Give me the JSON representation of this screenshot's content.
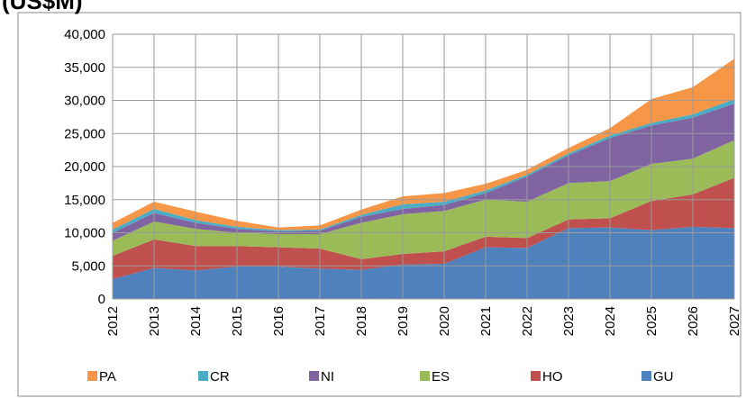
{
  "chart_data": {
    "type": "stacked_area",
    "title": "(US$M)",
    "categories": [
      "2012",
      "2013",
      "2014",
      "2015",
      "2016",
      "2017",
      "2018",
      "2019",
      "2020",
      "2021",
      "2022",
      "2023",
      "2024",
      "2025",
      "2026",
      "2027"
    ],
    "series": [
      {
        "name": "GU",
        "color": "#4f81bd",
        "values": [
          3000,
          4700,
          4300,
          4900,
          4900,
          4600,
          4400,
          5200,
          5300,
          7800,
          7700,
          10700,
          10800,
          10400,
          10900,
          10700
        ]
      },
      {
        "name": "HO",
        "color": "#c0504d",
        "values": [
          3500,
          4300,
          3700,
          3100,
          2900,
          3000,
          1600,
          1600,
          1900,
          1600,
          1500,
          1300,
          1400,
          4400,
          4900,
          7600
        ]
      },
      {
        "name": "ES",
        "color": "#9bbb59",
        "values": [
          2300,
          2700,
          2600,
          2000,
          2000,
          2200,
          5500,
          6000,
          6100,
          5600,
          5500,
          5500,
          5600,
          5600,
          5400,
          5700
        ]
      },
      {
        "name": "NI",
        "color": "#8064a2",
        "values": [
          1200,
          1300,
          900,
          600,
          400,
          500,
          900,
          800,
          900,
          1000,
          3800,
          4200,
          6500,
          5800,
          6200,
          5500
        ]
      },
      {
        "name": "CR",
        "color": "#4bacc6",
        "values": [
          500,
          600,
          400,
          300,
          200,
          200,
          300,
          700,
          500,
          400,
          300,
          300,
          400,
          400,
          500,
          700
        ]
      },
      {
        "name": "PA",
        "color": "#f79646",
        "values": [
          1000,
          1100,
          1300,
          900,
          400,
          600,
          800,
          1200,
          1300,
          1000,
          700,
          800,
          1100,
          3600,
          4100,
          6100
        ]
      }
    ],
    "ylim": [
      0,
      40000
    ],
    "yticks": [
      0,
      {
        "value": 5000,
        "label": "5,000"
      },
      {
        "value": 10000,
        "label": "10,000"
      },
      {
        "value": 15000,
        "label": "15,000"
      },
      {
        "value": 20000,
        "label": "20,000"
      },
      {
        "value": 25000,
        "label": "25,000"
      },
      {
        "value": 30000,
        "label": "30,000"
      },
      {
        "value": 35000,
        "label": "35,000"
      },
      {
        "value": 40000,
        "label": "40,000"
      }
    ],
    "grid": true,
    "legend": "bottom"
  }
}
